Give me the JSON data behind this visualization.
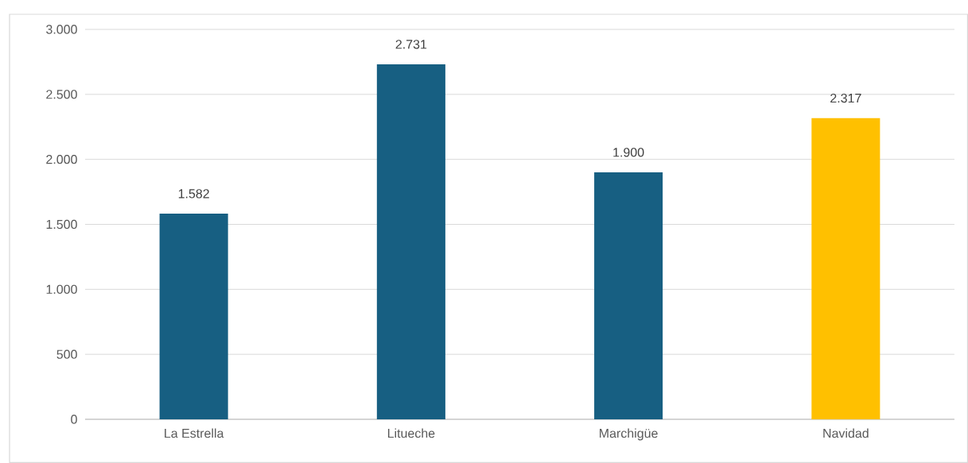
{
  "chart_data": {
    "type": "bar",
    "categories": [
      "La Estrella",
      "Litueche",
      "Marchigüe",
      "Navidad"
    ],
    "values": [
      1582,
      2731,
      1900,
      2317
    ],
    "colors": [
      "#175f82",
      "#175f82",
      "#175f82",
      "#ffc000"
    ],
    "value_labels": [
      "1.582",
      "2.731",
      "1.900",
      "2.317"
    ],
    "ylim": [
      0,
      3000
    ],
    "yticks": [
      {
        "value": 0,
        "label": "0"
      },
      {
        "value": 500,
        "label": "500"
      },
      {
        "value": 1000,
        "label": "1.000"
      },
      {
        "value": 1500,
        "label": "1.500"
      },
      {
        "value": 2000,
        "label": "2.000"
      },
      {
        "value": 2500,
        "label": "2.500"
      },
      {
        "value": 3000,
        "label": "3.000"
      }
    ],
    "grid": "y"
  }
}
